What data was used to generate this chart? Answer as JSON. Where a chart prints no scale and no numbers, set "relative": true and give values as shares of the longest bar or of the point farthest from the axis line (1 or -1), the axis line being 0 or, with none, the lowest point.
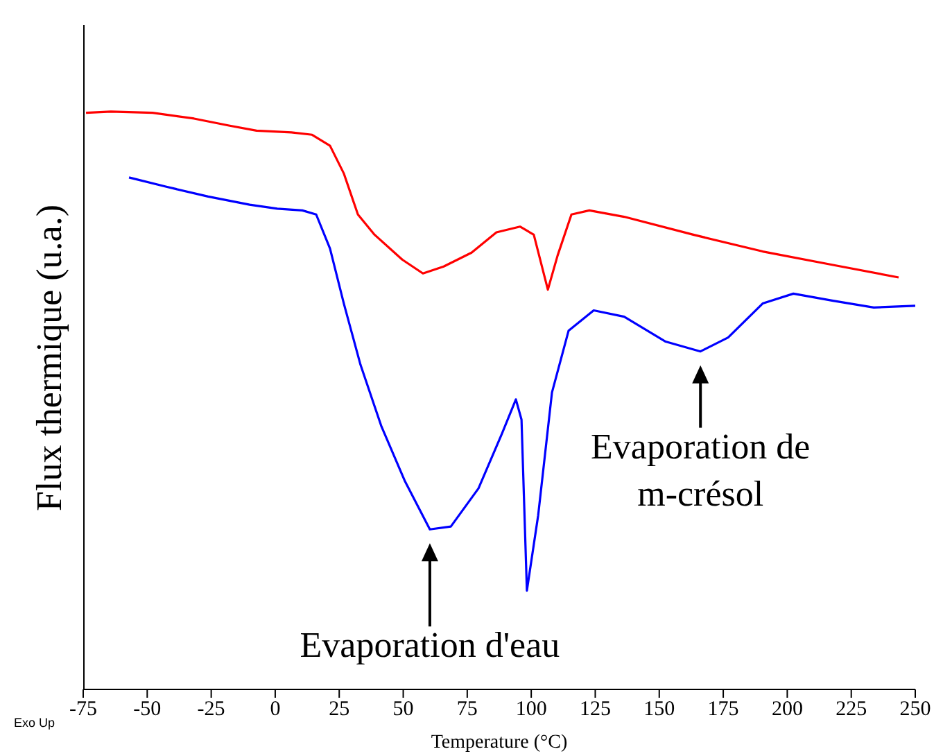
{
  "chart_data": {
    "type": "line",
    "relative": true,
    "xlabel": "Temperature (°C)",
    "ylabel": "Flux thermique (u.a.)",
    "xlim": [
      -75,
      250
    ],
    "xticks": [
      -75,
      -50,
      -25,
      0,
      25,
      50,
      75,
      100,
      125,
      150,
      175,
      200,
      225,
      250
    ],
    "tick_labels": "x",
    "grid": false,
    "legend": false,
    "marker": "none",
    "line_style": "solid",
    "series": [
      {
        "color": "#ff0000",
        "x": [
          -73.9,
          -64.2,
          -47.9,
          -31.7,
          -18.1,
          -7.3,
          6.3,
          14.4,
          21.4,
          26.8,
          32.3,
          38.8,
          49.6,
          57.7,
          65.8,
          76.7,
          86.4,
          95.6,
          101,
          106.5,
          110.3,
          115.7,
          122.7,
          136.3,
          163.3,
          190.4,
          217.5,
          243.5
        ],
        "values": [
          0.998,
          1.0,
          0.998,
          0.988,
          0.976,
          0.967,
          0.964,
          0.96,
          0.941,
          0.893,
          0.822,
          0.787,
          0.744,
          0.72,
          0.732,
          0.756,
          0.791,
          0.801,
          0.787,
          0.692,
          0.751,
          0.822,
          0.829,
          0.818,
          0.787,
          0.758,
          0.735,
          0.713
        ]
      },
      {
        "color": "#0000ff",
        "x": [
          -57.1,
          -42.5,
          -26.2,
          -10,
          0.8,
          10.6,
          16,
          21.4,
          26.8,
          33.3,
          41.5,
          50.7,
          60.4,
          68.6,
          79.4,
          88.6,
          94,
          96.2,
          98.3,
          102.7,
          108.1,
          114.6,
          124.4,
          136.3,
          152.5,
          166.1,
          176.9,
          190.4,
          202.4,
          217.5,
          233.8,
          250
        ],
        "values": [
          0.886,
          0.87,
          0.853,
          0.839,
          0.832,
          0.829,
          0.822,
          0.763,
          0.668,
          0.562,
          0.455,
          0.36,
          0.277,
          0.282,
          0.348,
          0.443,
          0.502,
          0.467,
          0.171,
          0.301,
          0.514,
          0.621,
          0.656,
          0.645,
          0.602,
          0.585,
          0.609,
          0.668,
          0.685,
          0.673,
          0.661,
          0.664
        ]
      }
    ],
    "annotations": [
      {
        "text": "Evaporation d'eau",
        "x": 60.4,
        "y": 0.277
      },
      {
        "text": "Evaporation de m-crésol",
        "x": 166.1,
        "y": 0.585
      },
      "Exo Up"
    ]
  }
}
